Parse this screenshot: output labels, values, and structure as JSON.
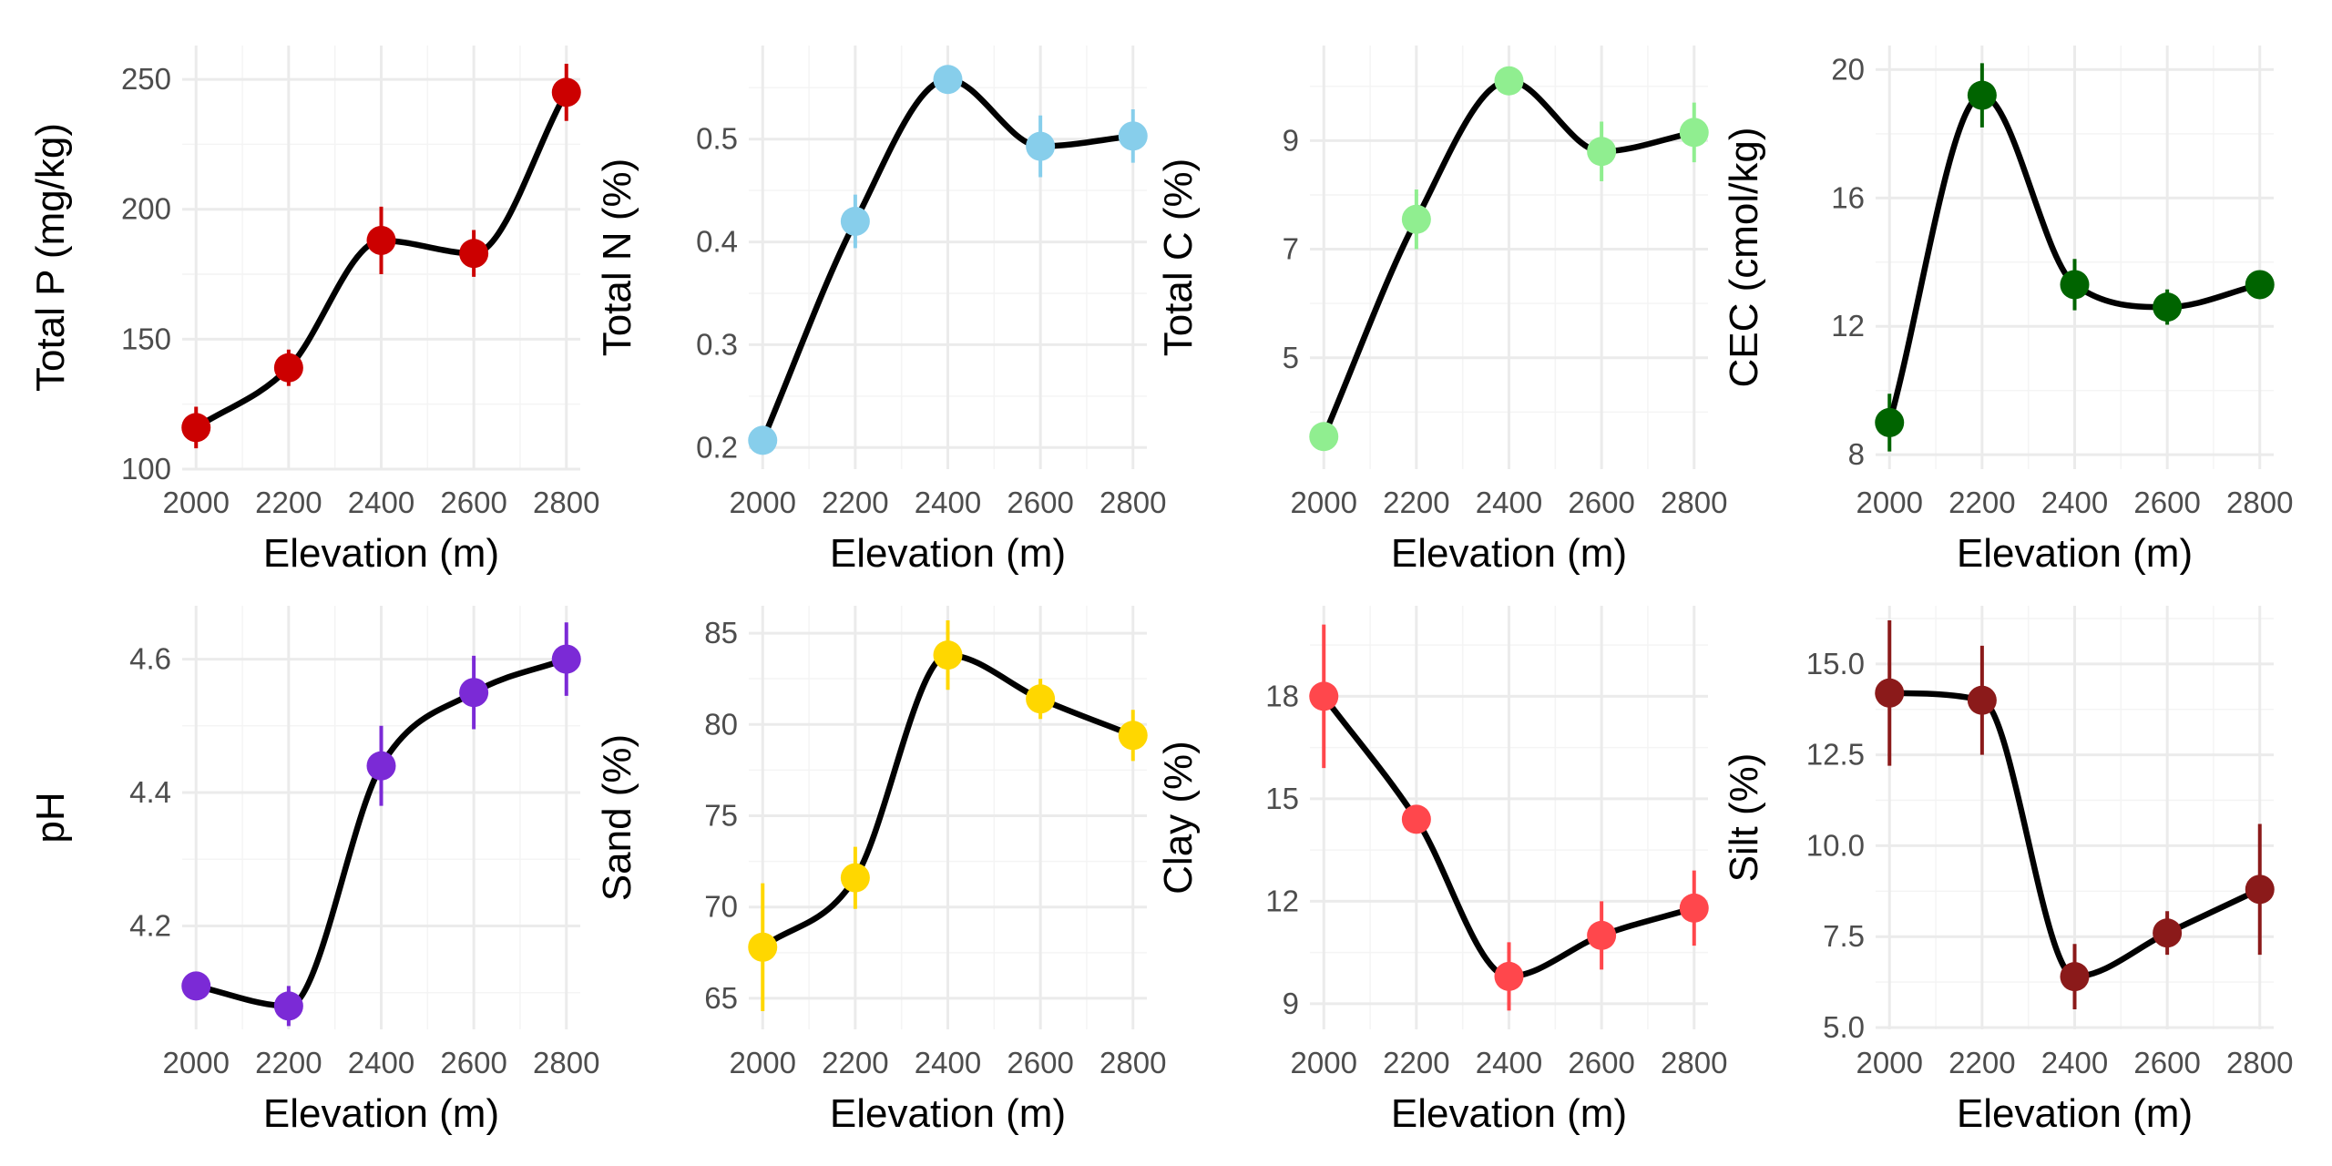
{
  "chart_data": [
    {
      "type": "line",
      "xlabel": "Elevation (m)",
      "ylabel": "Total P (mg/kg)",
      "color": "#CC0000",
      "x": [
        2000,
        2200,
        2400,
        2600,
        2800
      ],
      "values": [
        116,
        139,
        188,
        183,
        245
      ],
      "errors": [
        8,
        7,
        13,
        9,
        11
      ],
      "xlim": [
        1970,
        2830
      ],
      "xticks": [
        "2000",
        "2200",
        "2400",
        "2600",
        "2800"
      ],
      "ylim": [
        100,
        263
      ],
      "yticks": [
        100,
        150,
        200,
        250
      ],
      "yticklabels": [
        "100",
        "150",
        "200",
        "250"
      ]
    },
    {
      "type": "line",
      "xlabel": "Elevation (m)",
      "ylabel": "Total N (%)",
      "color": "#87CEEB",
      "x": [
        2000,
        2200,
        2400,
        2600,
        2800
      ],
      "values": [
        0.207,
        0.42,
        0.558,
        0.493,
        0.503
      ],
      "errors": [
        0.01,
        0.026,
        0.012,
        0.03,
        0.026
      ],
      "xlim": [
        1970,
        2830
      ],
      "ylim": [
        0.179,
        0.591
      ],
      "yticks": [
        0.2,
        0.3,
        0.4,
        0.5
      ],
      "yticklabels": [
        "0.2",
        "0.3",
        "0.4",
        "0.5"
      ]
    },
    {
      "type": "line",
      "xlabel": "Elevation (m)",
      "ylabel": "Total C (%)",
      "color": "#90EE90",
      "x": [
        2000,
        2200,
        2400,
        2600,
        2800
      ],
      "values": [
        3.55,
        7.55,
        10.1,
        8.8,
        9.15
      ],
      "errors": [
        0.2,
        0.55,
        0.2,
        0.55,
        0.55
      ],
      "xlim": [
        1970,
        2830
      ],
      "ylim": [
        2.95,
        10.75
      ],
      "yticks": [
        5,
        7,
        9
      ],
      "yticklabels": [
        "5",
        "7",
        "9"
      ]
    },
    {
      "type": "line",
      "xlabel": "Elevation (m)",
      "ylabel": "CEC (cmol/kg)",
      "color": "#006400",
      "x": [
        2000,
        2200,
        2400,
        2600,
        2800
      ],
      "values": [
        9,
        19.2,
        13.3,
        12.6,
        13.3
      ],
      "errors": [
        0.9,
        1.0,
        0.8,
        0.55,
        0.2
      ],
      "xlim": [
        1970,
        2830
      ],
      "ylim": [
        7.55,
        20.75
      ],
      "yticks": [
        8,
        12,
        16,
        20
      ],
      "yticklabels": [
        "8",
        "12",
        "16",
        "20"
      ]
    },
    {
      "type": "line",
      "xlabel": "Elevation (m)",
      "ylabel": "pH",
      "color": "#7B2AD6",
      "x": [
        2000,
        2200,
        2400,
        2600,
        2800
      ],
      "values": [
        4.11,
        4.08,
        4.44,
        4.55,
        4.6
      ],
      "errors": [
        0.005,
        0.03,
        0.06,
        0.055,
        0.055
      ],
      "xlim": [
        1970,
        2830
      ],
      "ylim": [
        4.045,
        4.68
      ],
      "yticks": [
        4.2,
        4.4,
        4.6
      ],
      "yticklabels": [
        "4.2",
        "4.4",
        "4.6"
      ]
    },
    {
      "type": "line",
      "xlabel": "Elevation (m)",
      "ylabel": "Sand (%)",
      "color": "#FFD700",
      "x": [
        2000,
        2200,
        2400,
        2600,
        2800
      ],
      "values": [
        67.8,
        71.6,
        83.8,
        81.4,
        79.4
      ],
      "errors": [
        3.5,
        1.7,
        1.9,
        1.1,
        1.4
      ],
      "xlim": [
        1970,
        2830
      ],
      "ylim": [
        63.3,
        86.5
      ],
      "yticks": [
        65,
        70,
        75,
        80,
        85
      ],
      "yticklabels": [
        "65",
        "70",
        "75",
        "80",
        "85"
      ]
    },
    {
      "type": "line",
      "xlabel": "Elevation (m)",
      "ylabel": "Clay (%)",
      "color": "#FF474C",
      "x": [
        2000,
        2200,
        2400,
        2600,
        2800
      ],
      "values": [
        18,
        14.4,
        9.8,
        11,
        11.8
      ],
      "errors": [
        2.1,
        0.25,
        1.0,
        1.0,
        1.1
      ],
      "xlim": [
        1970,
        2830
      ],
      "ylim": [
        8.25,
        20.65
      ],
      "yticks": [
        9,
        12,
        15,
        18
      ],
      "yticklabels": [
        "9",
        "12",
        "15",
        "18"
      ]
    },
    {
      "type": "line",
      "xlabel": "Elevation (m)",
      "ylabel": "Silt (%)",
      "color": "#8B1A1A",
      "x": [
        2000,
        2200,
        2400,
        2600,
        2800
      ],
      "values": [
        14.2,
        14,
        6.4,
        7.6,
        8.8
      ],
      "errors": [
        2.0,
        1.5,
        0.9,
        0.6,
        1.8
      ],
      "xlim": [
        1970,
        2830
      ],
      "ylim": [
        4.95,
        16.6
      ],
      "yticks": [
        5,
        7.5,
        10,
        12.5,
        15
      ],
      "yticklabels": [
        "5.0",
        "7.5",
        "10.0",
        "12.5",
        "15.0"
      ]
    }
  ]
}
